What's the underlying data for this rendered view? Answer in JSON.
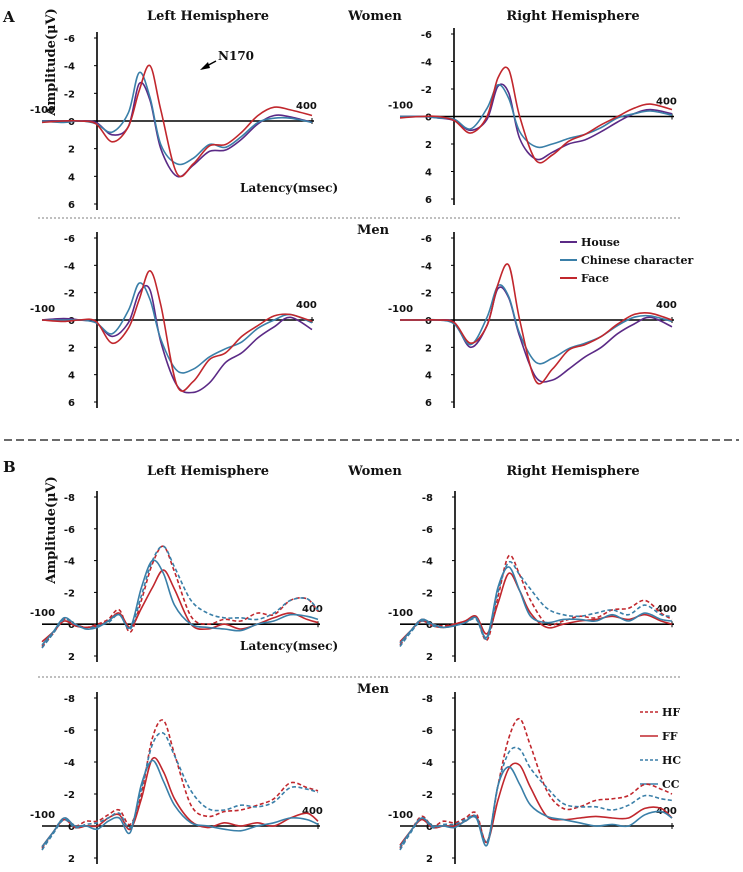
{
  "colors": {
    "purple": "#5b2a86",
    "blue": "#3a7fa8",
    "red": "#c1272d"
  },
  "panelA": {
    "label": "A",
    "women": "Women",
    "men": "Men",
    "left_hemisphere": "Left Hemisphere",
    "right_hemisphere": "Right Hemisphere",
    "ylabel": "Amplitude(μV)",
    "xlabel": "Latency(msec)",
    "annotation": "N170",
    "x_start": "-100",
    "x_end": "400",
    "legend": [
      "House",
      "Chinese character",
      "Face"
    ]
  },
  "panelB": {
    "label": "B",
    "women": "Women",
    "men": "Men",
    "left_hemisphere": "Left Hemisphere",
    "right_hemisphere": "Right Hemisphere",
    "ylabel": "Amplitude(μV)",
    "xlabel": "Latency(msec)",
    "x_start": "-100",
    "x_end": "400",
    "legend": [
      "HF",
      "FF",
      "HC",
      "CC"
    ]
  },
  "chart_data": [
    {
      "type": "line",
      "panel": "A",
      "group": "Women",
      "hemisphere": "Left",
      "ylim": [
        6,
        -6
      ],
      "yticks": [
        "-6",
        "-4",
        "-2",
        "0",
        "2",
        "4",
        "6"
      ],
      "x": [
        -100,
        -60,
        -30,
        0,
        30,
        60,
        80,
        100,
        120,
        150,
        180,
        210,
        240,
        270,
        300,
        330,
        360,
        400
      ],
      "series": [
        {
          "name": "House",
          "color": "purple",
          "dashed": false,
          "values": [
            0,
            0,
            0,
            0.1,
            1,
            0.4,
            -2.7,
            -1.5,
            2,
            4,
            3.2,
            2.2,
            2.1,
            1.3,
            0.2,
            -0.4,
            -0.3,
            0.1
          ]
        },
        {
          "name": "Chinese character",
          "color": "blue",
          "dashed": false,
          "values": [
            0,
            0.1,
            0,
            0.2,
            0.8,
            -0.6,
            -3.5,
            -1.7,
            1.7,
            3.1,
            2.7,
            1.7,
            1.9,
            1.1,
            0.1,
            -0.2,
            -0.2,
            0.1
          ]
        },
        {
          "name": "Face",
          "color": "red",
          "dashed": false,
          "values": [
            0.1,
            0,
            0,
            0.2,
            1.5,
            0.4,
            -2.2,
            -4,
            -0.8,
            3.8,
            3.1,
            1.8,
            1.7,
            0.8,
            -0.4,
            -1,
            -0.8,
            -0.4
          ]
        }
      ]
    },
    {
      "type": "line",
      "panel": "A",
      "group": "Women",
      "hemisphere": "Right",
      "ylim": [
        6,
        -6
      ],
      "yticks": [
        "-6",
        "-4",
        "-2",
        "0",
        "2",
        "4",
        "6"
      ],
      "x": [
        -100,
        -60,
        -30,
        0,
        30,
        60,
        80,
        100,
        120,
        150,
        180,
        210,
        240,
        270,
        300,
        330,
        360,
        400
      ],
      "series": [
        {
          "name": "House",
          "color": "purple",
          "dashed": false,
          "values": [
            0,
            0,
            0.1,
            0.3,
            1,
            0.2,
            -2.2,
            -1.7,
            1.6,
            3.1,
            2.6,
            2,
            1.7,
            1.1,
            0.4,
            -0.2,
            -0.5,
            -0.2
          ]
        },
        {
          "name": "Chinese character",
          "color": "blue",
          "dashed": false,
          "values": [
            0,
            0,
            0.1,
            0.2,
            0.9,
            -0.6,
            -2.3,
            -1.3,
            1.1,
            2.2,
            2,
            1.6,
            1.3,
            0.8,
            0.1,
            -0.2,
            -0.4,
            -0.1
          ]
        },
        {
          "name": "Face",
          "color": "red",
          "dashed": false,
          "values": [
            0.1,
            0,
            0,
            0.3,
            1.2,
            0,
            -2.8,
            -3.4,
            0,
            3.2,
            2.8,
            1.8,
            1.3,
            0.6,
            0,
            -0.6,
            -0.9,
            -0.5
          ]
        }
      ]
    },
    {
      "type": "line",
      "panel": "A",
      "group": "Men",
      "hemisphere": "Left",
      "ylim": [
        6,
        -6
      ],
      "yticks": [
        "-6",
        "-4",
        "-2",
        "0",
        "2",
        "4",
        "6"
      ],
      "x": [
        -100,
        -60,
        -30,
        0,
        30,
        60,
        80,
        100,
        120,
        150,
        180,
        210,
        240,
        270,
        300,
        330,
        360,
        400
      ],
      "series": [
        {
          "name": "House",
          "color": "purple",
          "dashed": false,
          "values": [
            0,
            -0.1,
            0,
            0.2,
            1.2,
            0.2,
            -2,
            -2.2,
            1.6,
            4.8,
            5.3,
            4.6,
            3.1,
            2.4,
            1.3,
            0.5,
            -0.2,
            0.7
          ]
        },
        {
          "name": "Chinese character",
          "color": "blue",
          "dashed": false,
          "values": [
            0,
            0,
            0,
            0.2,
            1,
            -0.7,
            -2.7,
            -1.5,
            1.4,
            3.7,
            3.6,
            2.7,
            2.1,
            1.6,
            0.6,
            0,
            -0.4,
            0.2
          ]
        },
        {
          "name": "Face",
          "color": "red",
          "dashed": false,
          "values": [
            0,
            0.1,
            0,
            0.1,
            1.7,
            0.6,
            -1.5,
            -3.6,
            -1.1,
            4.8,
            4.5,
            2.9,
            2.4,
            1.2,
            0.4,
            -0.3,
            -0.4,
            0.1
          ]
        }
      ]
    },
    {
      "type": "line",
      "panel": "A",
      "group": "Men",
      "hemisphere": "Right",
      "ylim": [
        6,
        -6
      ],
      "yticks": [
        "-6",
        "-4",
        "-2",
        "0",
        "2",
        "4",
        "6"
      ],
      "x": [
        -100,
        -60,
        -30,
        0,
        30,
        60,
        80,
        100,
        120,
        150,
        180,
        210,
        240,
        270,
        300,
        330,
        360,
        400
      ],
      "series": [
        {
          "name": "House",
          "color": "purple",
          "dashed": false,
          "values": [
            0,
            0,
            0,
            0.2,
            2,
            0.4,
            -2.3,
            -1.6,
            1.2,
            4.2,
            4.4,
            3.6,
            2.7,
            2,
            1,
            0.3,
            -0.2,
            0.5
          ]
        },
        {
          "name": "Chinese character",
          "color": "blue",
          "dashed": false,
          "values": [
            0,
            0,
            0,
            0.3,
            1.8,
            -0.2,
            -2.5,
            -1.7,
            1,
            3.1,
            2.8,
            2.1,
            1.7,
            1.2,
            0.4,
            -0.2,
            -0.3,
            0.1
          ]
        },
        {
          "name": "Face",
          "color": "red",
          "dashed": false,
          "values": [
            0,
            0,
            0,
            0.2,
            1.7,
            0.4,
            -2.6,
            -4,
            0,
            4.5,
            3.6,
            2.2,
            1.8,
            1.2,
            0.3,
            -0.4,
            -0.5,
            0
          ]
        }
      ]
    },
    {
      "type": "line",
      "panel": "B",
      "group": "Women",
      "hemisphere": "Left",
      "ylim": [
        2,
        -8
      ],
      "yticks": [
        "-8",
        "-6",
        "-4",
        "-2",
        "0",
        "2"
      ],
      "x": [
        -100,
        -80,
        -60,
        -40,
        -20,
        0,
        20,
        40,
        60,
        80,
        100,
        120,
        140,
        170,
        200,
        230,
        260,
        290,
        320,
        350,
        380,
        400
      ],
      "series": [
        {
          "name": "HF",
          "color": "red",
          "dashed": true,
          "values": [
            1.4,
            0.6,
            -0.3,
            0,
            0.2,
            0,
            -0.3,
            -0.9,
            0.5,
            -1.5,
            -3.8,
            -4.9,
            -3.3,
            -0.5,
            0,
            -0.3,
            -0.2,
            -0.7,
            -0.6,
            -1.5,
            -1.6,
            -0.8
          ]
        },
        {
          "name": "FF",
          "color": "red",
          "dashed": false,
          "values": [
            1.1,
            0.5,
            -0.2,
            0.1,
            0.2,
            0.1,
            -0.2,
            -0.7,
            0.2,
            -1,
            -2.3,
            -3.4,
            -2.2,
            0,
            0.3,
            0,
            0.3,
            0,
            -0.4,
            -0.7,
            -0.3,
            -0.1
          ]
        },
        {
          "name": "HC",
          "color": "blue",
          "dashed": true,
          "values": [
            1.5,
            0.6,
            -0.3,
            0,
            0.3,
            0.1,
            -0.1,
            -0.6,
            0.3,
            -1.8,
            -4,
            -4.9,
            -3.6,
            -1.5,
            -0.7,
            -0.4,
            -0.4,
            -0.3,
            -0.7,
            -1.5,
            -1.6,
            -0.9
          ]
        },
        {
          "name": "CC",
          "color": "blue",
          "dashed": false,
          "values": [
            1.3,
            0.5,
            -0.4,
            0,
            0.3,
            0.2,
            -0.2,
            -0.6,
            0.2,
            -2.3,
            -4,
            -3.2,
            -1.2,
            0,
            0.2,
            0.3,
            0.4,
            0,
            -0.2,
            -0.6,
            -0.5,
            -0.3
          ]
        }
      ]
    },
    {
      "type": "line",
      "panel": "B",
      "group": "Women",
      "hemisphere": "Right",
      "ylim": [
        2,
        -8
      ],
      "yticks": [
        "-8",
        "-6",
        "-4",
        "-2",
        "0",
        "2"
      ],
      "x": [
        -100,
        -80,
        -60,
        -40,
        -20,
        0,
        20,
        40,
        60,
        80,
        100,
        120,
        140,
        170,
        200,
        230,
        260,
        290,
        320,
        350,
        380,
        400
      ],
      "series": [
        {
          "name": "HF",
          "color": "red",
          "dashed": true,
          "values": [
            1.3,
            0.4,
            -0.3,
            0,
            0.1,
            0,
            -0.2,
            -0.4,
            1,
            -1.7,
            -4.3,
            -3.1,
            -1.5,
            0,
            -0.2,
            -0.5,
            -0.4,
            -0.9,
            -1,
            -1.5,
            -0.7,
            -0.3
          ]
        },
        {
          "name": "FF",
          "color": "red",
          "dashed": false,
          "values": [
            1.1,
            0.4,
            -0.2,
            0.1,
            0.2,
            0,
            -0.2,
            -0.5,
            0.6,
            -1.3,
            -3.2,
            -2.1,
            -0.7,
            0.2,
            0,
            -0.2,
            -0.3,
            -0.5,
            -0.3,
            -0.6,
            -0.2,
            0
          ]
        },
        {
          "name": "HC",
          "color": "blue",
          "dashed": true,
          "values": [
            1.4,
            0.5,
            -0.2,
            0.1,
            0.2,
            0.1,
            -0.1,
            -0.3,
            0.9,
            -2,
            -3.9,
            -3.1,
            -2.2,
            -1,
            -0.6,
            -0.5,
            -0.7,
            -0.9,
            -0.6,
            -1.2,
            -0.6,
            -0.5
          ]
        },
        {
          "name": "CC",
          "color": "blue",
          "dashed": false,
          "values": [
            1.2,
            0.4,
            -0.3,
            0,
            0.2,
            0.1,
            -0.1,
            -0.4,
            0.8,
            -2.3,
            -3.6,
            -2.1,
            -0.5,
            -0.1,
            -0.3,
            -0.3,
            -0.2,
            -0.6,
            -0.2,
            -0.7,
            -0.3,
            -0.2
          ]
        }
      ]
    },
    {
      "type": "line",
      "panel": "B",
      "group": "Men",
      "hemisphere": "Left",
      "ylim": [
        2,
        -8
      ],
      "yticks": [
        "-8",
        "-6",
        "-4",
        "-2",
        "0",
        "2"
      ],
      "x": [
        -100,
        -80,
        -60,
        -40,
        -20,
        0,
        20,
        40,
        60,
        80,
        100,
        120,
        140,
        170,
        200,
        230,
        260,
        290,
        320,
        350,
        380,
        400
      ],
      "series": [
        {
          "name": "HF",
          "color": "red",
          "dashed": true,
          "values": [
            1.4,
            0.4,
            -0.5,
            0,
            -0.3,
            -0.3,
            -0.7,
            -1,
            -0.1,
            -2,
            -5.5,
            -6.6,
            -4.5,
            -1.3,
            -0.6,
            -0.9,
            -1,
            -1.3,
            -1.7,
            -2.7,
            -2.4,
            -2.2
          ]
        },
        {
          "name": "FF",
          "color": "red",
          "dashed": false,
          "values": [
            1.3,
            0.4,
            -0.4,
            0.1,
            0,
            0,
            -0.5,
            -0.7,
            0.2,
            -1.7,
            -4.2,
            -3.4,
            -1.7,
            -0.3,
            0.1,
            -0.2,
            0,
            -0.2,
            0,
            -0.5,
            -0.8,
            -0.3
          ]
        },
        {
          "name": "HC",
          "color": "blue",
          "dashed": true,
          "values": [
            1.5,
            0.5,
            -0.4,
            0.1,
            -0.1,
            -0.2,
            -0.5,
            -0.8,
            0.1,
            -2.3,
            -5.1,
            -5.8,
            -4.4,
            -2.2,
            -1.1,
            -1,
            -1.3,
            -1.2,
            -1.5,
            -2.4,
            -2.3,
            -2.1
          ]
        },
        {
          "name": "CC",
          "color": "blue",
          "dashed": false,
          "values": [
            1.3,
            0.4,
            -0.5,
            0,
            0,
            0.2,
            -0.3,
            -0.5,
            0.4,
            -2.6,
            -4.1,
            -2.8,
            -1.3,
            -0.2,
            0,
            0.2,
            0.3,
            0,
            -0.2,
            -0.5,
            -0.4,
            -0.1
          ]
        }
      ]
    },
    {
      "type": "line",
      "panel": "B",
      "group": "Men",
      "hemisphere": "Right",
      "ylim": [
        2,
        -8
      ],
      "yticks": [
        "-8",
        "-6",
        "-4",
        "-2",
        "0",
        "2"
      ],
      "x": [
        -100,
        -80,
        -60,
        -40,
        -20,
        0,
        20,
        40,
        60,
        80,
        100,
        120,
        140,
        170,
        200,
        230,
        260,
        290,
        320,
        350,
        380,
        400
      ],
      "series": [
        {
          "name": "HF",
          "color": "red",
          "dashed": true,
          "values": [
            1.4,
            0.3,
            -0.6,
            0,
            -0.3,
            -0.2,
            -0.5,
            -0.8,
            1,
            -2.5,
            -5.5,
            -6.7,
            -5,
            -2.2,
            -1.1,
            -1.2,
            -1.6,
            -1.7,
            -1.9,
            -2.6,
            -2.3,
            -2
          ]
        },
        {
          "name": "FF",
          "color": "red",
          "dashed": false,
          "values": [
            1.2,
            0.3,
            -0.4,
            0.1,
            0,
            0,
            -0.3,
            -0.6,
            1,
            -1.6,
            -3.6,
            -3.8,
            -2.4,
            -0.6,
            -0.4,
            -0.5,
            -0.6,
            -0.5,
            -0.5,
            -1.1,
            -1.1,
            -0.5
          ]
        },
        {
          "name": "HC",
          "color": "blue",
          "dashed": true,
          "values": [
            1.5,
            0.4,
            -0.5,
            0.1,
            -0.1,
            -0.1,
            -0.4,
            -0.6,
            1,
            -2.5,
            -4.6,
            -4.8,
            -3.6,
            -2.4,
            -1.4,
            -1.2,
            -1.2,
            -1,
            -1.3,
            -1.9,
            -1.7,
            -1.6
          ]
        },
        {
          "name": "CC",
          "color": "blue",
          "dashed": false,
          "values": [
            1.3,
            0.3,
            -0.5,
            0,
            0,
            0.1,
            -0.3,
            -0.5,
            1.2,
            -2.5,
            -3.7,
            -2.6,
            -1.3,
            -0.6,
            -0.4,
            -0.2,
            0,
            -0.1,
            0,
            -0.7,
            -0.9,
            -0.5
          ]
        }
      ]
    }
  ]
}
